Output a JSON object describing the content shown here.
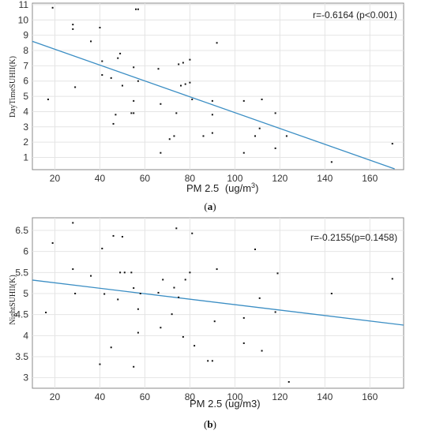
{
  "chart_data": [
    {
      "type": "scatter",
      "caption_pre": "(",
      "caption_letter": "a",
      "caption_post": ")",
      "xlabel": "PM 2.5",
      "xunit_pre": "(ug/m",
      "xunit_sup": "3",
      "xunit_post": ")",
      "ylabel": "DayTimeSUHII(K)",
      "annotation": "r=-0.6164  (p<0.001)",
      "xlim": [
        10,
        175
      ],
      "ylim": [
        0.2,
        11.1
      ],
      "xticks": [
        20,
        40,
        60,
        80,
        100,
        120,
        140,
        160
      ],
      "yticks": [
        1,
        2,
        3,
        4,
        5,
        6,
        7,
        8,
        9,
        10,
        11
      ],
      "grid": true,
      "fit_line": {
        "x": [
          10,
          171
        ],
        "y": [
          8.6,
          0.25
        ],
        "color": "#3b8ec4"
      },
      "x": [
        17,
        19,
        28,
        28,
        29,
        36,
        40,
        41,
        41,
        45,
        46,
        47,
        48,
        49,
        50,
        54,
        55,
        55,
        55,
        56,
        57,
        57,
        66,
        67,
        67,
        71,
        73,
        74,
        75,
        76,
        77,
        78,
        80,
        80,
        81,
        86,
        90,
        90,
        90,
        92,
        104,
        104,
        109,
        111,
        112,
        118,
        118,
        123,
        143,
        170
      ],
      "y": [
        4.8,
        10.8,
        9.4,
        9.7,
        5.6,
        8.6,
        9.5,
        6.4,
        7.3,
        6.2,
        3.2,
        3.8,
        7.5,
        7.8,
        5.7,
        3.9,
        4.7,
        6.9,
        3.9,
        10.7,
        10.7,
        6.0,
        6.8,
        1.3,
        4.5,
        2.2,
        2.4,
        3.9,
        7.1,
        5.7,
        7.2,
        5.8,
        7.4,
        5.9,
        4.8,
        2.4,
        4.7,
        2.6,
        3.8,
        8.5,
        4.7,
        1.3,
        2.4,
        2.9,
        4.8,
        3.9,
        1.6,
        2.4,
        0.7,
        1.9
      ]
    },
    {
      "type": "scatter",
      "caption_pre": "(",
      "caption_letter": "b",
      "caption_post": ")",
      "xlabel": "PM 2.5  (ug/m3)",
      "ylabel": "NightSUHII(K)",
      "annotation": "r=-0.2155(p=0.1458)",
      "xlim": [
        10,
        175
      ],
      "ylim": [
        2.75,
        6.8
      ],
      "xticks": [
        20,
        40,
        60,
        80,
        100,
        120,
        140,
        160
      ],
      "yticks": [
        3,
        3.5,
        4,
        4.5,
        5,
        5.5,
        6,
        6.5
      ],
      "yticklabels": [
        "3",
        "3.5",
        "4",
        "4.5",
        "5",
        "5.5",
        "6",
        "6.5"
      ],
      "grid": true,
      "fit_line": {
        "x": [
          10,
          175
        ],
        "y": [
          5.32,
          4.25
        ],
        "color": "#3b8ec4"
      },
      "x": [
        16,
        19,
        28,
        28,
        29,
        36,
        40,
        41,
        42,
        45,
        46,
        48,
        49,
        50,
        51,
        54,
        55,
        55,
        57,
        57,
        58,
        66,
        67,
        68,
        72,
        73,
        74,
        75,
        77,
        78,
        80,
        81,
        82,
        88,
        90,
        91,
        92,
        104,
        104,
        109,
        111,
        112,
        118,
        119,
        124,
        143,
        170
      ],
      "y": [
        4.55,
        6.2,
        6.68,
        5.58,
        5.0,
        5.42,
        3.32,
        6.07,
        4.99,
        3.72,
        6.37,
        4.86,
        5.5,
        6.35,
        5.5,
        5.5,
        3.26,
        5.13,
        4.63,
        4.07,
        5.0,
        5.02,
        4.19,
        5.33,
        4.51,
        5.14,
        6.55,
        4.91,
        3.97,
        5.33,
        5.5,
        6.43,
        3.76,
        3.4,
        3.4,
        4.34,
        5.58,
        4.42,
        3.82,
        6.05,
        4.89,
        3.64,
        4.56,
        5.48,
        2.9,
        5.0,
        5.35
      ]
    }
  ]
}
